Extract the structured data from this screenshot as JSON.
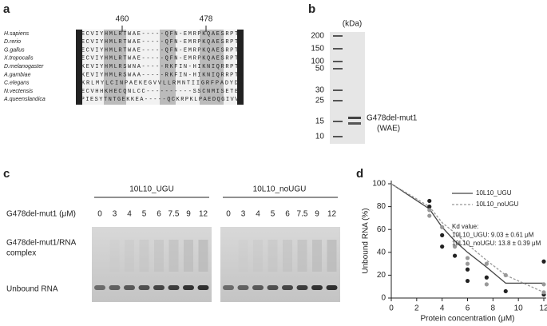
{
  "panels": {
    "a": {
      "label": "a",
      "positions": [
        "460",
        "478"
      ],
      "species": [
        "H.sapiens",
        "D.rerio",
        "G.gallus",
        "X.tropocalis",
        "D.melanogaster",
        "A.gambiae",
        "C.elegans",
        "N.vectensis",
        "A.queenslandica"
      ],
      "sequences": [
        "KECVIYHMLRTWAE-----QFN-EMRPKQAESRPTK",
        "KECVIYHMLRTWAE-----QFN-EMRPKQAESRPTK",
        "KECVIYHMLRTWAE-----QFN-EMRPKQAESRPTK",
        "KECVIYHMLRTWAE-----QFN-EMRPKQAESRPTK",
        "KKEVIYHMLRSWNA-----RKFIN-HIKNIQRRPTK",
        "KKEVIYHMLRSWAA-----RKFIN-HIKNIQRRPTK",
        "RKRLMYLCINPAEKEGVVLLRMNTIIGRFPADYDK",
        "KECVHHKHECQNLCC----------SSCNMISETEV",
        "EPIESYTNTGEKKEA-----QCKRPKLPAEDQGIVVE"
      ]
    },
    "b": {
      "label": "b",
      "unit": "(kDa)",
      "markers": [
        "200",
        "150",
        "100",
        "50",
        "30",
        "25",
        "15",
        "10"
      ],
      "band_label": [
        "G478del-mut1",
        "(WAE)"
      ]
    },
    "c": {
      "label": "c",
      "row_label": "G478del-mut1 (μM)",
      "conditions": [
        "10L10_UGU",
        "10L10_noUGU"
      ],
      "concentrations": [
        [
          "0",
          "3",
          "4",
          "5",
          "6",
          "7.5",
          "9",
          "12"
        ],
        [
          "0",
          "3",
          "4",
          "5",
          "6",
          "7.5",
          "9",
          "12"
        ]
      ],
      "complex_label": [
        "G478del-mut1/RNA",
        "complex"
      ],
      "unbound_label": "Unbound RNA"
    },
    "d": {
      "label": "d"
    }
  },
  "chart_data": {
    "type": "line",
    "xlabel": "Protein concentration (μM)",
    "ylabel": "Unbound RNA (%)",
    "xlim": [
      0,
      12
    ],
    "ylim": [
      0,
      100
    ],
    "xticks": [
      0,
      2,
      4,
      6,
      8,
      10,
      12
    ],
    "yticks": [
      0,
      20,
      40,
      60,
      80,
      100
    ],
    "series": [
      {
        "name": "10L10_UGU",
        "kind": "line",
        "dash": false,
        "color": "#444444",
        "x": [
          0,
          3,
          4,
          5,
          6,
          7.5,
          9,
          12
        ],
        "values": [
          100,
          78,
          62,
          50,
          40,
          27,
          13,
          13
        ]
      },
      {
        "name": "10L10_noUGU",
        "kind": "line",
        "dash": true,
        "color": "#999999",
        "x": [
          0,
          3,
          4,
          5,
          6,
          7.5,
          9,
          12
        ],
        "values": [
          100,
          80,
          66,
          57,
          47,
          33,
          20,
          5
        ]
      },
      {
        "kind": "scatter",
        "color": "#222222",
        "x": [
          3,
          3,
          4,
          4,
          5,
          6,
          6,
          7.5,
          9,
          12,
          12
        ],
        "values": [
          85,
          80,
          55,
          45,
          37,
          25,
          15,
          18,
          6,
          32,
          3
        ]
      },
      {
        "kind": "scatter",
        "color": "#999999",
        "x": [
          3,
          3,
          4,
          5,
          6,
          6,
          7.5,
          7.5,
          9,
          12,
          12
        ],
        "values": [
          77,
          72,
          62,
          45,
          35,
          30,
          30,
          12,
          20,
          12,
          5
        ]
      }
    ],
    "annotations": [
      "Kd value:",
      "10L10_UGU: 9.03 ± 0.61 μM",
      "10L10_noUGU: 13.8 ± 0.39 μM"
    ]
  }
}
